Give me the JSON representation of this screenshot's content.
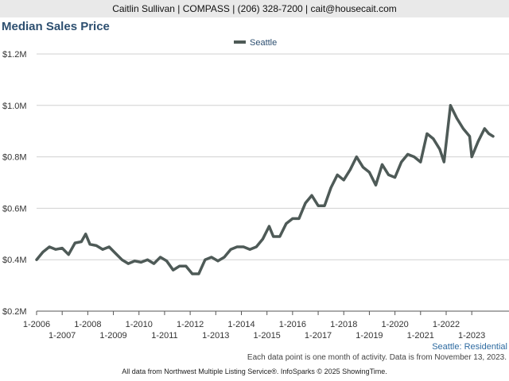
{
  "header": {
    "contact": "Caitlin Sullivan | COMPASS | (206) 328-7200 | cait@housecait.com"
  },
  "footer": {
    "note": "Each data point is one month of activity. Data is from November 13, 2023.",
    "credit": "All data from Northwest Multiple Listing Service®. InfoSparks © 2025 ShowingTime."
  },
  "colors": {
    "series": "#4e5a57",
    "grid": "#d0d0d0",
    "title": "#2d4f70"
  },
  "chart_data": {
    "type": "line",
    "title": "Median Sales Price",
    "subtitle": "",
    "xlabel": "",
    "ylabel": "",
    "legend_position": "top-center",
    "grid": true,
    "ylim": [
      200000,
      1200000
    ],
    "xlim": [
      "2006-01",
      "2023-11"
    ],
    "y_ticks": [
      {
        "value": 200000,
        "label": "$0.2M"
      },
      {
        "value": 400000,
        "label": "$0.4M"
      },
      {
        "value": 600000,
        "label": "$0.6M"
      },
      {
        "value": 800000,
        "label": "$0.8M"
      },
      {
        "value": 1000000,
        "label": "$1.0M"
      },
      {
        "value": 1200000,
        "label": "$1.2M"
      }
    ],
    "x_ticks": [
      {
        "value": "2006-01",
        "label": "1-2006",
        "row": 0
      },
      {
        "value": "2007-01",
        "label": "1-2007",
        "row": 1
      },
      {
        "value": "2008-01",
        "label": "1-2008",
        "row": 0
      },
      {
        "value": "2009-01",
        "label": "1-2009",
        "row": 1
      },
      {
        "value": "2010-01",
        "label": "1-2010",
        "row": 0
      },
      {
        "value": "2011-01",
        "label": "1-2011",
        "row": 1
      },
      {
        "value": "2012-01",
        "label": "1-2012",
        "row": 0
      },
      {
        "value": "2013-01",
        "label": "1-2013",
        "row": 1
      },
      {
        "value": "2014-01",
        "label": "1-2014",
        "row": 0
      },
      {
        "value": "2015-01",
        "label": "1-2015",
        "row": 1
      },
      {
        "value": "2016-01",
        "label": "1-2016",
        "row": 0
      },
      {
        "value": "2017-01",
        "label": "1-2017",
        "row": 1
      },
      {
        "value": "2018-01",
        "label": "1-2018",
        "row": 0
      },
      {
        "value": "2019-01",
        "label": "1-2019",
        "row": 1
      },
      {
        "value": "2020-01",
        "label": "1-2020",
        "row": 0
      },
      {
        "value": "2021-01",
        "label": "1-2021",
        "row": 1
      },
      {
        "value": "2022-01",
        "label": "1-2022",
        "row": 0
      },
      {
        "value": "2023-01",
        "label": "1-2023",
        "row": 1
      }
    ],
    "corner_label": "Seattle: Residential",
    "series": [
      {
        "name": "Seattle",
        "points": [
          [
            "2006-01",
            400000
          ],
          [
            "2006-04",
            430000
          ],
          [
            "2006-07",
            450000
          ],
          [
            "2006-10",
            440000
          ],
          [
            "2007-01",
            445000
          ],
          [
            "2007-04",
            420000
          ],
          [
            "2007-07",
            465000
          ],
          [
            "2007-10",
            470000
          ],
          [
            "2007-12",
            500000
          ],
          [
            "2008-02",
            460000
          ],
          [
            "2008-05",
            455000
          ],
          [
            "2008-08",
            440000
          ],
          [
            "2008-11",
            450000
          ],
          [
            "2009-02",
            425000
          ],
          [
            "2009-05",
            400000
          ],
          [
            "2009-08",
            385000
          ],
          [
            "2009-11",
            395000
          ],
          [
            "2010-02",
            390000
          ],
          [
            "2010-05",
            400000
          ],
          [
            "2010-08",
            385000
          ],
          [
            "2010-11",
            410000
          ],
          [
            "2011-02",
            395000
          ],
          [
            "2011-05",
            360000
          ],
          [
            "2011-08",
            375000
          ],
          [
            "2011-11",
            375000
          ],
          [
            "2012-02",
            345000
          ],
          [
            "2012-05",
            345000
          ],
          [
            "2012-08",
            400000
          ],
          [
            "2012-11",
            410000
          ],
          [
            "2013-02",
            395000
          ],
          [
            "2013-05",
            410000
          ],
          [
            "2013-08",
            440000
          ],
          [
            "2013-11",
            450000
          ],
          [
            "2014-02",
            450000
          ],
          [
            "2014-05",
            440000
          ],
          [
            "2014-08",
            450000
          ],
          [
            "2014-11",
            480000
          ],
          [
            "2015-02",
            530000
          ],
          [
            "2015-04",
            490000
          ],
          [
            "2015-07",
            490000
          ],
          [
            "2015-10",
            540000
          ],
          [
            "2016-01",
            560000
          ],
          [
            "2016-04",
            560000
          ],
          [
            "2016-07",
            620000
          ],
          [
            "2016-10",
            650000
          ],
          [
            "2017-01",
            610000
          ],
          [
            "2017-04",
            610000
          ],
          [
            "2017-07",
            680000
          ],
          [
            "2017-10",
            730000
          ],
          [
            "2018-01",
            710000
          ],
          [
            "2018-04",
            750000
          ],
          [
            "2018-07",
            800000
          ],
          [
            "2018-10",
            760000
          ],
          [
            "2019-01",
            740000
          ],
          [
            "2019-04",
            690000
          ],
          [
            "2019-07",
            770000
          ],
          [
            "2019-10",
            730000
          ],
          [
            "2020-01",
            720000
          ],
          [
            "2020-04",
            780000
          ],
          [
            "2020-07",
            810000
          ],
          [
            "2020-10",
            800000
          ],
          [
            "2021-01",
            780000
          ],
          [
            "2021-04",
            890000
          ],
          [
            "2021-07",
            870000
          ],
          [
            "2021-10",
            830000
          ],
          [
            "2021-12",
            780000
          ],
          [
            "2022-03",
            1000000
          ],
          [
            "2022-06",
            950000
          ],
          [
            "2022-09",
            910000
          ],
          [
            "2022-12",
            880000
          ],
          [
            "2023-01",
            800000
          ],
          [
            "2023-04",
            860000
          ],
          [
            "2023-07",
            910000
          ],
          [
            "2023-09",
            890000
          ],
          [
            "2023-11",
            880000
          ]
        ]
      }
    ]
  }
}
